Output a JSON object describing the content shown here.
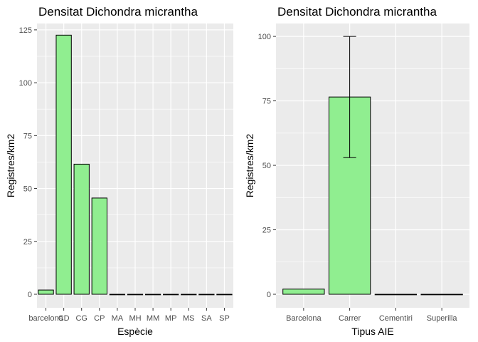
{
  "chart_data": [
    {
      "type": "bar",
      "title": "Densitat Dichondra micrantha",
      "xlabel": "Espècie",
      "ylabel": "Registres/km2",
      "categories": [
        "barcelona",
        "CD",
        "CG",
        "CP",
        "MA",
        "MH",
        "MM",
        "MP",
        "MS",
        "SA",
        "SP"
      ],
      "values": [
        2,
        122.5,
        61.5,
        45.5,
        0,
        0,
        0,
        0,
        0,
        0,
        0
      ],
      "ylim": [
        0,
        128
      ],
      "yticks": [
        0,
        25,
        50,
        75,
        100,
        125
      ],
      "bar_color": "#90EE90",
      "panel_color": "#EBEBEB",
      "grid": true,
      "error_bars": null
    },
    {
      "type": "bar",
      "title": "Densitat Dichondra micrantha",
      "xlabel": "Tipus AIE",
      "ylabel": "Registres/km2",
      "categories": [
        "Barcelona",
        "Carrer",
        "Cementiri",
        "Superilla"
      ],
      "values": [
        2,
        76.5,
        0,
        0
      ],
      "ylim": [
        0,
        105
      ],
      "yticks": [
        0,
        25,
        50,
        75,
        100
      ],
      "bar_color": "#90EE90",
      "panel_color": "#EBEBEB",
      "grid": true,
      "error_bars": [
        null,
        [
          53,
          100
        ],
        null,
        null
      ]
    }
  ]
}
